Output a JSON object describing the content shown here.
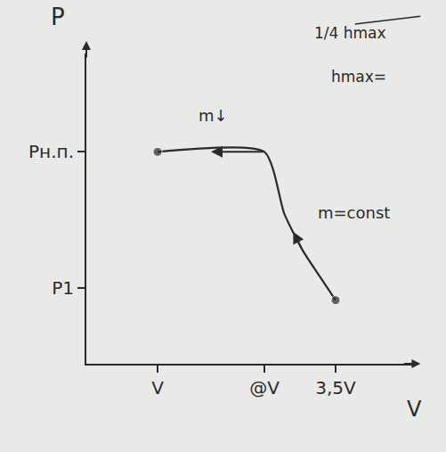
{
  "chart_data": {
    "type": "line",
    "xlabel": "V",
    "ylabel": "P",
    "x": [
      1,
      2.5,
      2.78,
      3.03,
      3.28,
      3.5
    ],
    "values": [
      2.8,
      2.8,
      1.98,
      1.51,
      1.15,
      0.84
    ],
    "xlim": [
      0,
      4.6
    ],
    "ylim": [
      0,
      4.1
    ],
    "xticks": [
      {
        "value": 1,
        "label": "V"
      },
      {
        "value": 2.5,
        "label": "@V"
      },
      {
        "value": 3.5,
        "label": "3,5V"
      }
    ],
    "yticks": [
      {
        "value": 1,
        "label": "P1"
      },
      {
        "value": 2.8,
        "label": "Pн.п."
      }
    ],
    "grid": false,
    "color": "#2b2b2b",
    "marker": "circle",
    "line_style": "solid",
    "annotations": [
      {
        "text": "m↓",
        "x": 1.78,
        "y": 3.28
      },
      {
        "text": "m=const",
        "x": 3.75,
        "y": 2.0
      },
      {
        "text": "1/4 hmax"
      },
      {
        "text": "hmax="
      }
    ]
  }
}
